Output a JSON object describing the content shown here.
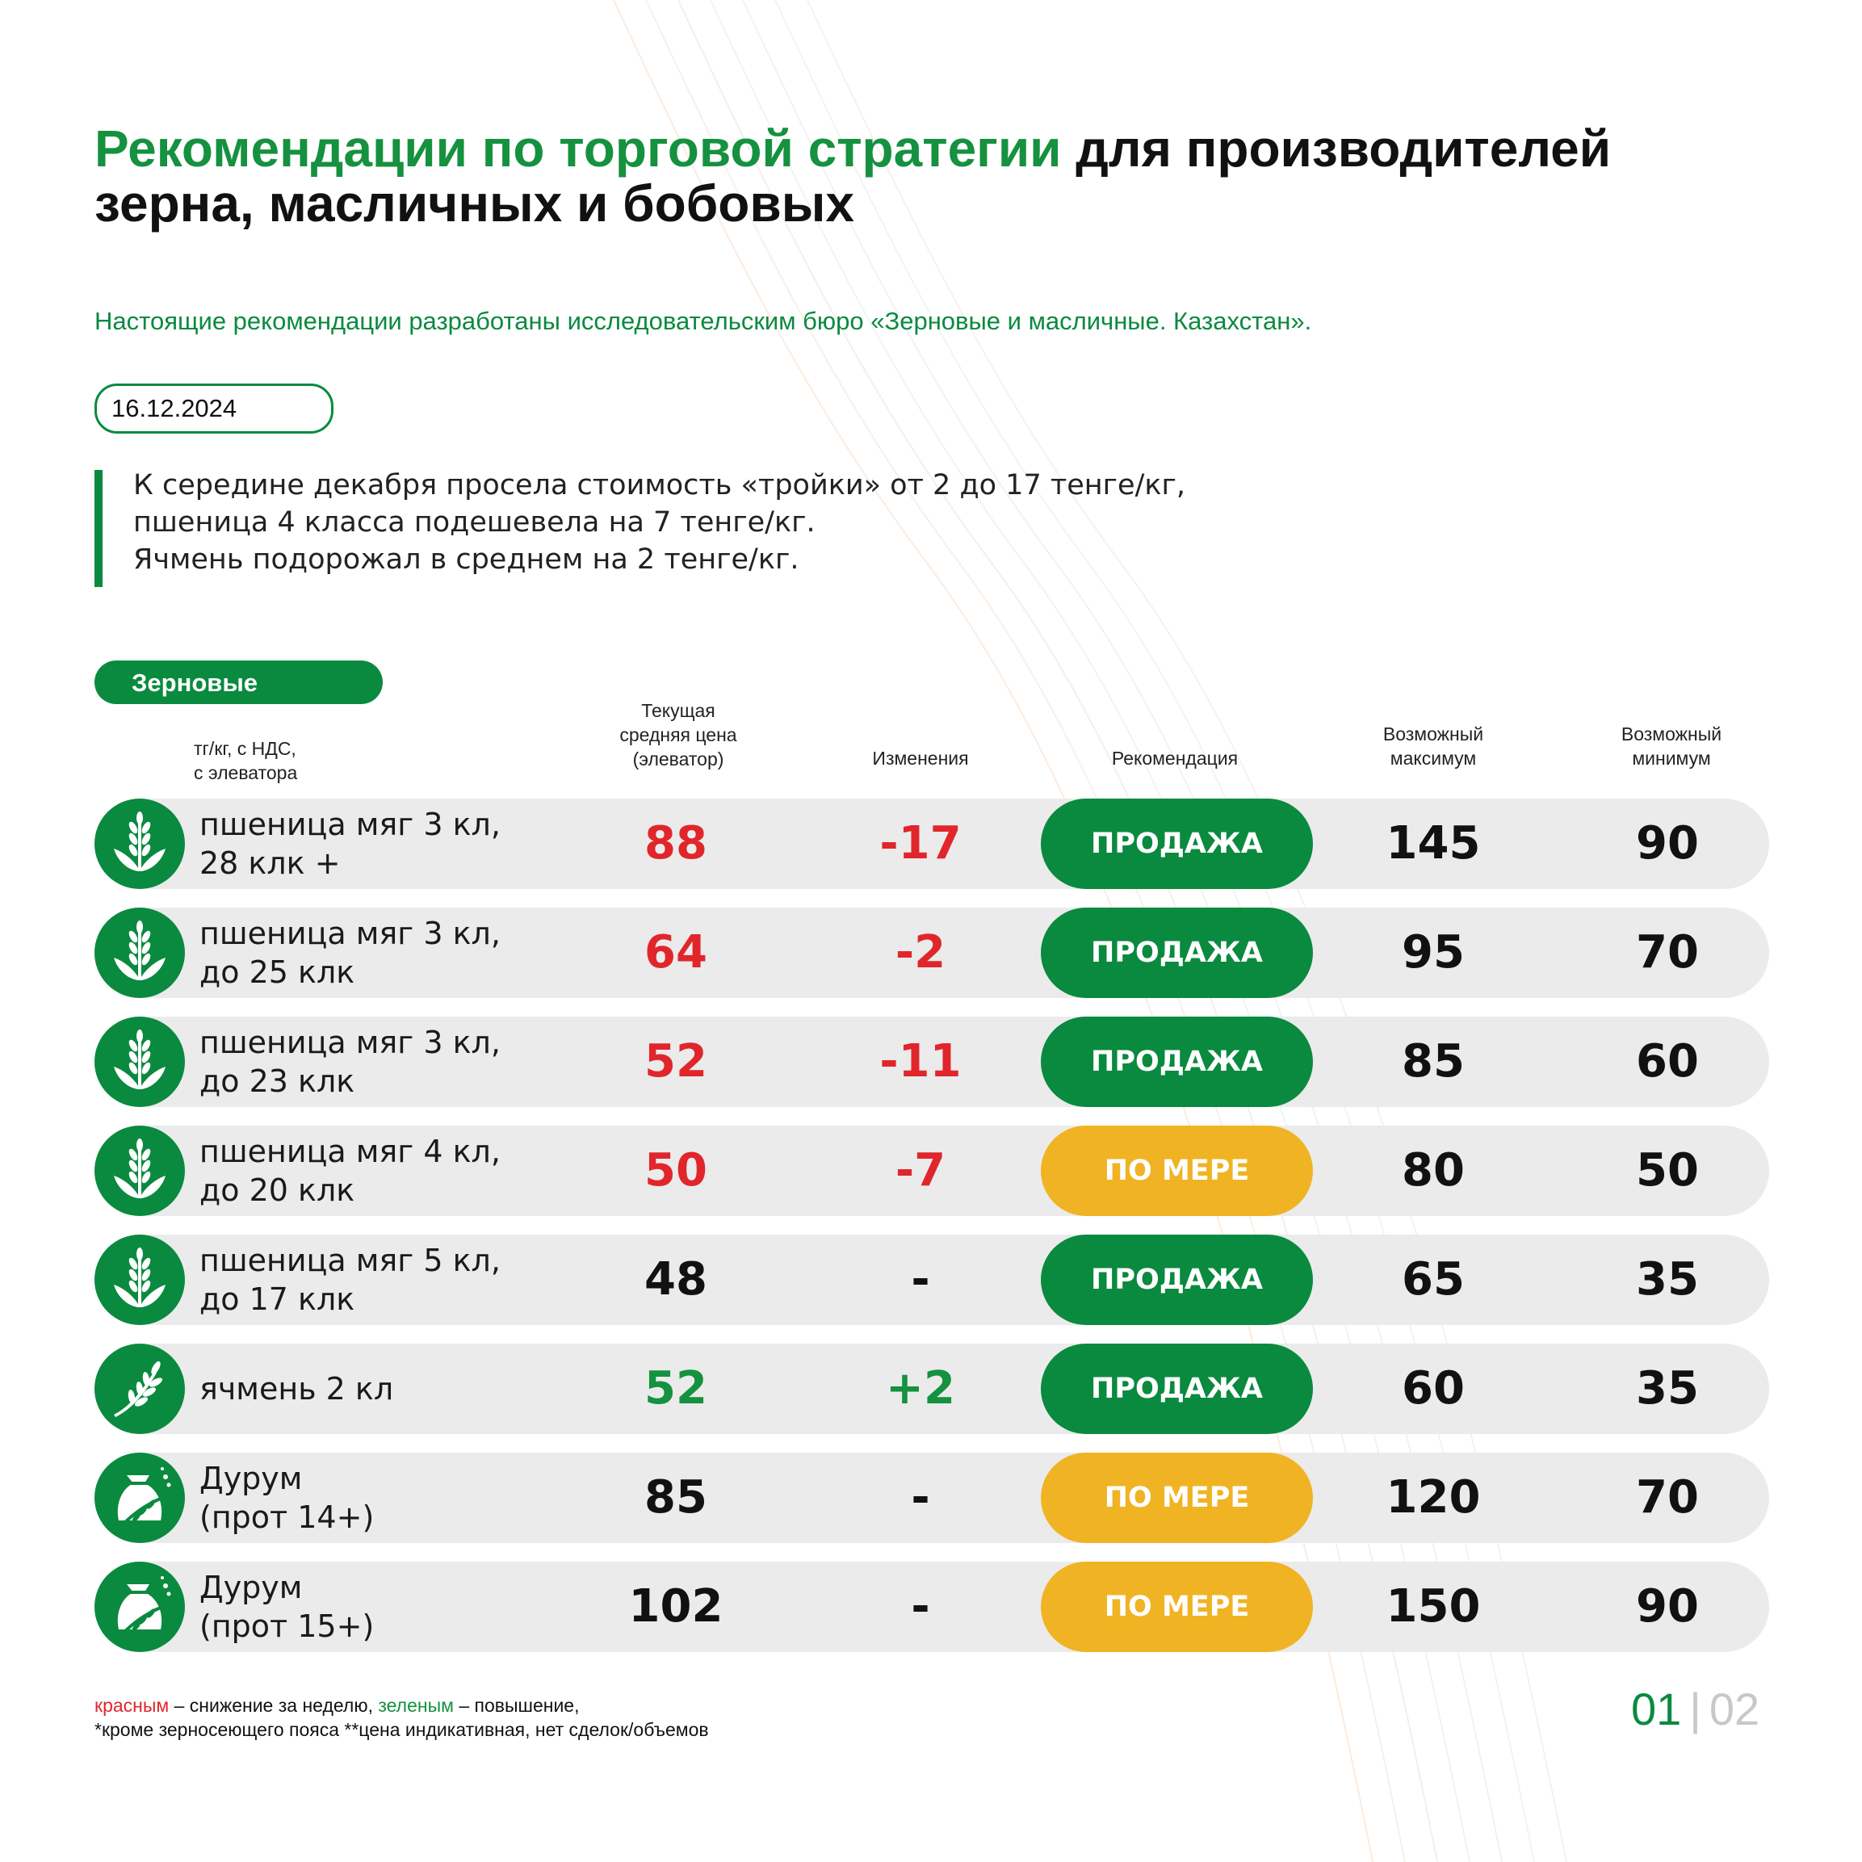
{
  "header": {
    "title_green": "Рекомендации по торговой стратегии",
    "title_black_1": "для производителей",
    "title_black_2": "зерна, масличных и бобовых",
    "subtitle": "Настоящие рекомендации разработаны исследовательским бюро «Зерновые и масличные. Казахстан».",
    "date": "16.12.2024"
  },
  "note": {
    "line1": "К середине декабря просела стоимость «тройки» от 2 до 17 тенге/кг,",
    "line2": "пшеница 4 класса подешевела на 7 тенге/кг.",
    "line3": "Ячмень подорожал в среднем на 2 тенге/кг."
  },
  "section": {
    "label": "Зерновые"
  },
  "table_header": {
    "unit_1": "тг/кг, с НДС,",
    "unit_2": "с элеватора",
    "price_1": "Текущая",
    "price_2": "средняя цена",
    "price_3": "(элеватор)",
    "change": "Изменения",
    "reco": "Рекомендация",
    "max_1": "Возможный",
    "max_2": "максимум",
    "min_1": "Возможный",
    "min_2": "минимум"
  },
  "rows": [
    {
      "name": "пшеница мяг 3 кл,\n28 клк +",
      "price": "88",
      "price_color": "red",
      "change": "-17",
      "change_color": "red",
      "reco": "ПРОДАЖА",
      "reco_type": "sell",
      "max": "145",
      "min": "90",
      "icon": "wheat-icon"
    },
    {
      "name": "пшеница мяг 3 кл,\nдо 25 клк",
      "price": "64",
      "price_color": "red",
      "change": "-2",
      "change_color": "red",
      "reco": "ПРОДАЖА",
      "reco_type": "sell",
      "max": "95",
      "min": "70",
      "icon": "wheat-icon"
    },
    {
      "name": "пшеница мяг 3 кл,\nдо 23 клк",
      "price": "52",
      "price_color": "red",
      "change": "-11",
      "change_color": "red",
      "reco": "ПРОДАЖА",
      "reco_type": "sell",
      "max": "85",
      "min": "60",
      "icon": "wheat-icon"
    },
    {
      "name": "пшеница мяг 4 кл,\nдо 20 клк",
      "price": "50",
      "price_color": "red",
      "change": "-7",
      "change_color": "red",
      "reco": "ПО МЕРЕ",
      "reco_type": "wait",
      "max": "80",
      "min": "50",
      "icon": "wheat-icon"
    },
    {
      "name": "пшеница мяг 5 кл,\nдо 17 клк",
      "price": "48",
      "price_color": "black",
      "change": "-",
      "change_color": "black",
      "reco": "ПРОДАЖА",
      "reco_type": "sell",
      "max": "65",
      "min": "35",
      "icon": "wheat-icon"
    },
    {
      "name": "ячмень 2 кл",
      "price": "52",
      "price_color": "green",
      "change": "+2",
      "change_color": "green",
      "reco": "ПРОДАЖА",
      "reco_type": "sell",
      "max": "60",
      "min": "35",
      "icon": "barley-icon"
    },
    {
      "name": "Дурум\n(прот 14+)",
      "price": "85",
      "price_color": "black",
      "change": "-",
      "change_color": "black",
      "reco": "ПО МЕРЕ",
      "reco_type": "wait",
      "max": "120",
      "min": "70",
      "icon": "grain-sack-icon"
    },
    {
      "name": "Дурум\n(прот 15+)",
      "price": "102",
      "price_color": "black",
      "change": "-",
      "change_color": "black",
      "reco": "ПО МЕРЕ",
      "reco_type": "wait",
      "max": "150",
      "min": "90",
      "icon": "grain-sack-icon"
    }
  ],
  "legend": {
    "red_word": "красным",
    "red_desc": " – снижение за неделю, ",
    "green_word": "зеленым",
    "green_desc": " – повышение,",
    "line2": "*кроме зерносеющего пояса **цена индикативная, нет сделок/объемов"
  },
  "pager": {
    "current": "01",
    "separator": "|",
    "total": "02"
  },
  "colors": {
    "brand_green": "#0a8a3f",
    "decrease_red": "#e0262b",
    "increase_green": "#15913f",
    "wait_yellow": "#f0b323",
    "row_bg": "#ebebeb"
  }
}
